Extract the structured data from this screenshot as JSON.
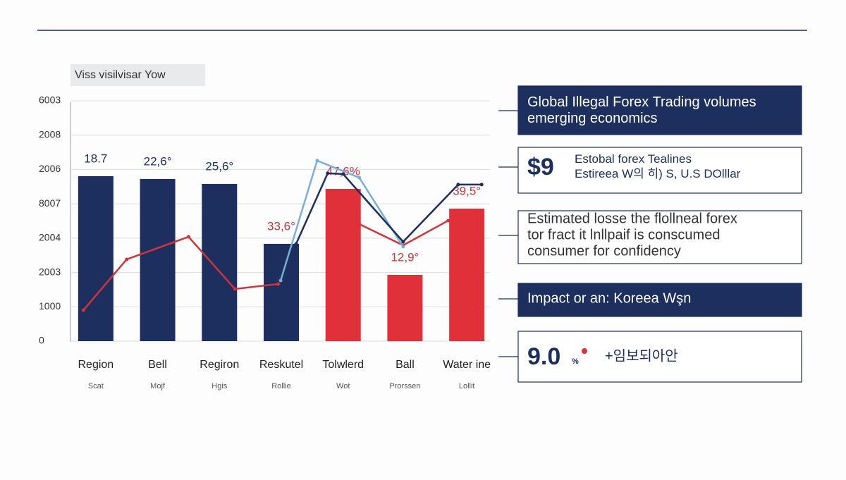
{
  "header": {
    "tag": "Viss visilvisar Yow"
  },
  "chart_data": {
    "type": "bar",
    "categories": [
      "Region",
      "Bell",
      "Regiron",
      "Reskutel",
      "Tolwlerd",
      "Ball",
      "Water ine"
    ],
    "sublabels": [
      "Scat",
      "Mojf",
      "Hgis",
      "Rollie",
      "Wot",
      "Prorssen",
      "Lollit"
    ],
    "values": [
      4805,
      4723,
      4579,
      2834,
      4435,
      1930,
      3860
    ],
    "colors": [
      "#1c2f5e",
      "#1c2f5e",
      "#1c2f5e",
      "#1c2f5e",
      "#e0313a",
      "#e0313a",
      "#e0313a"
    ],
    "bar_labels": [
      "18.7",
      "22,6°",
      "25,6°",
      "33,6°",
      "47,6%",
      "12,9°",
      "39,5°"
    ],
    "bar_label_colors": [
      "#1c2f5e",
      "#1c2f5e",
      "#1c2f5e",
      "#c9343a",
      "#c9343a",
      "#c9343a",
      "#c9343a"
    ],
    "lines": [
      {
        "color": "#d0343a",
        "x": [
          -0.2,
          0.5,
          1.5,
          2.25,
          2.95,
          3.6,
          4.26,
          4.97,
          5.7
        ],
        "values": [
          903,
          2382,
          3039,
          1520,
          1663,
          null,
          3409,
          2793,
          3511
        ]
      },
      {
        "color": "#7aaed6",
        "x": [
          2.99,
          3.58,
          4.26,
          4.97
        ],
        "values": [
          1766,
          5257,
          4764,
          2752
        ]
      },
      {
        "color": "#1c2f5e",
        "x": [
          3.24,
          3.75,
          4.0,
          4.97,
          5.86,
          6.24
        ],
        "values": [
          2834,
          4887,
          4867,
          2895,
          4559,
          4559
        ]
      }
    ],
    "xlim": [
      -0.5,
      6.5
    ],
    "ylim": [
      0,
      7000
    ],
    "yticks": [
      0,
      1000,
      {
        "value": 2000,
        "label": "2003"
      },
      {
        "value": 3000,
        "label": "2004"
      },
      {
        "value": 4000,
        "label": "8007"
      },
      {
        "value": 5000,
        "label": "2006"
      },
      {
        "value": 6000,
        "label": "2008"
      },
      {
        "value": 7000,
        "label": "6003"
      }
    ],
    "grid": true
  },
  "panels": [
    {
      "lines": [
        "Global Illegal Forex Trading volumes",
        "emerging economics"
      ]
    },
    {
      "big": "$9",
      "lines": [
        "Estobal forex Tealines",
        "Estireea W의 히) S, U.S DOlllar"
      ]
    },
    {
      "lines": [
        "Estimated losse the flollneal forex",
        "tor fract it lnllpaif is conscumed",
        "consumer for confidency"
      ]
    },
    {
      "lines": [
        "Impact or an: Koreea Wşn"
      ]
    },
    {
      "big": "9.0",
      "small": "%",
      "lines": [
        "+임보되아안"
      ]
    }
  ]
}
